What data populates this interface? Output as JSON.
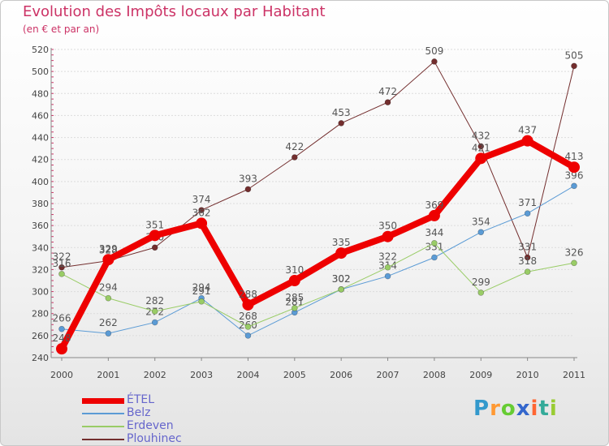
{
  "chart_data": {
    "type": "line",
    "title": "Evolution des Impôts locaux par Habitant",
    "subtitle": "(en € et par an)",
    "xlabel": "",
    "ylabel": "",
    "categories": [
      "2000",
      "2001",
      "2002",
      "2003",
      "2004",
      "2005",
      "2006",
      "2007",
      "2008",
      "2009",
      "2010",
      "2011"
    ],
    "ylim": [
      240,
      520
    ],
    "yticks": [
      240,
      260,
      280,
      300,
      320,
      340,
      360,
      380,
      400,
      420,
      440,
      460,
      480,
      500,
      520
    ],
    "grid": true,
    "legend_position": "bottom-left",
    "series": [
      {
        "name": "Plouhinec",
        "color": "#732e2e",
        "values": [
          322,
          328,
          340,
          374,
          393,
          422,
          453,
          472,
          509,
          432,
          331,
          505
        ]
      },
      {
        "name": "Belz",
        "color": "#5b9bd5",
        "values": [
          266,
          262,
          272,
          294,
          260,
          281,
          302,
          314,
          331,
          354,
          371,
          396
        ]
      },
      {
        "name": "Erdeven",
        "color": "#99cc66",
        "values": [
          316,
          294,
          282,
          291,
          268,
          285,
          302,
          322,
          344,
          299,
          318,
          326
        ]
      },
      {
        "name": "ÉTEL",
        "color": "#ee0000",
        "values": [
          248,
          329,
          351,
          362,
          288,
          310,
          335,
          350,
          369,
          421,
          437,
          413
        ]
      }
    ]
  },
  "logo": {
    "letters": [
      "P",
      "r",
      "o",
      "x",
      "i",
      "t",
      "i"
    ],
    "colors": [
      "#3399cc",
      "#ff9933",
      "#66cc33",
      "#3366cc",
      "#ff6633",
      "#33aa99",
      "#99cc33"
    ]
  }
}
